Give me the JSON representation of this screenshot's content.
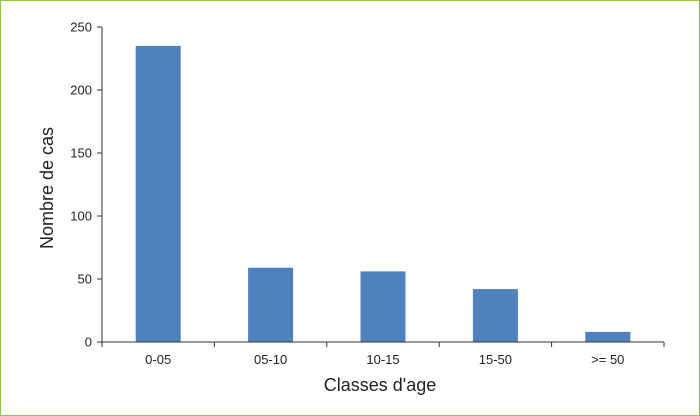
{
  "chart_data": {
    "type": "bar",
    "categories": [
      "0-05",
      "05-10",
      "10-15",
      "15-50",
      ">= 50"
    ],
    "values": [
      235,
      59,
      56,
      42,
      8
    ],
    "xlabel": "Classes d'age",
    "ylabel": "Nombre de cas",
    "ylim": [
      0,
      250
    ],
    "yticks": [
      0,
      50,
      100,
      150,
      200,
      250
    ],
    "grid": false,
    "legend": "none",
    "bar_color": "#4f81bd",
    "frame_color": "#8dc63f"
  }
}
